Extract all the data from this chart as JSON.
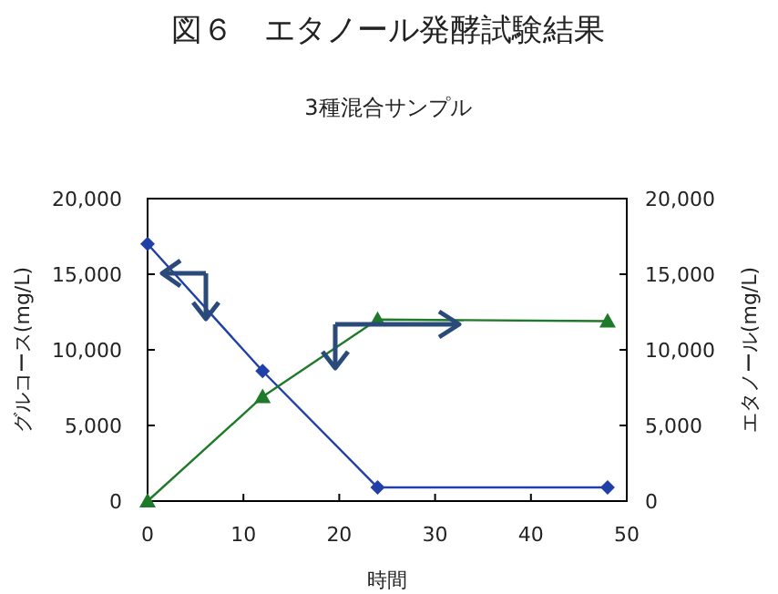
{
  "chart_data": {
    "type": "line",
    "title": "図６　エタノール発酵試験結果",
    "subtitle": "3種混合サンプル",
    "xlabel": "時間",
    "ylabel": "グルコース(mg/L)",
    "y2label": "エタノール(mg/L)",
    "x": [
      0,
      12,
      24,
      48
    ],
    "series": [
      {
        "color": "#2040a8",
        "values": [
          17000,
          8600,
          900,
          900
        ],
        "marker": "diamond"
      },
      {
        "color": "#1e7a28",
        "values": [
          0,
          6900,
          12000,
          11900
        ],
        "marker": "triangle"
      }
    ],
    "xlim": [
      0,
      50
    ],
    "xticks": [
      0,
      10,
      20,
      30,
      40,
      50
    ],
    "ylim": [
      0,
      20000
    ],
    "yticks": [
      0,
      {
        "value": 5000,
        "label": "5,000"
      },
      {
        "value": 10000,
        "label": "10,000"
      },
      {
        "value": 15000,
        "label": "15,000"
      },
      {
        "value": 20000,
        "label": "20,000"
      }
    ],
    "y2lim": [
      0,
      20000
    ],
    "y2ticks": [
      0,
      {
        "value": 5000,
        "label": "5,000"
      },
      {
        "value": 10000,
        "label": "10,000"
      },
      {
        "value": 15000,
        "label": "15,000"
      },
      {
        "value": 20000,
        "label": "20,000"
      }
    ]
  }
}
